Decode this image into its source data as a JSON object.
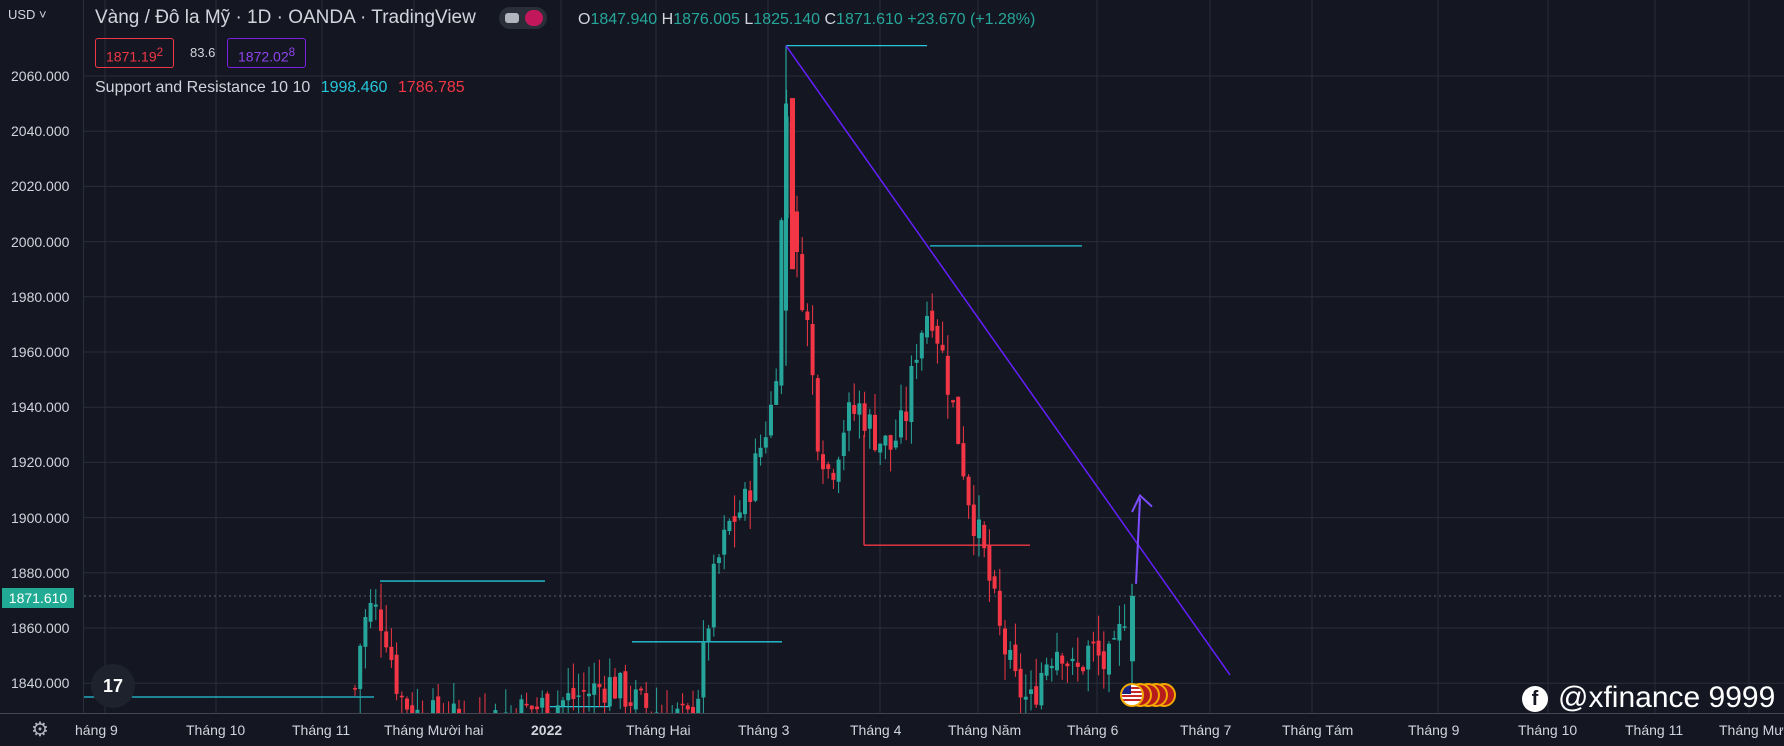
{
  "symbol_title": "Vàng / Đô la Mỹ · 1D · OANDA · TradingView",
  "ohlc": {
    "open_key": "O",
    "open": "1847.940",
    "high_key": "H",
    "high": "1876.005",
    "low_key": "L",
    "low": "1825.140",
    "close_key": "C",
    "close": "1871.610",
    "change": "+23.670 (+1.28%)"
  },
  "trade_boxes": {
    "sell_price": "1871.19",
    "sell_sup": "2",
    "spread": "83.6",
    "buy_price": "1872.02",
    "buy_sup": "8"
  },
  "indicator": {
    "name": "Support and Resistance 10 10",
    "value1": "1998.460",
    "value2": "1786.785"
  },
  "price_axis": {
    "currency": "USD ˅",
    "labels": [
      "2060.000",
      "2040.000",
      "2020.000",
      "2000.000",
      "1980.000",
      "1960.000",
      "1940.000",
      "1920.000",
      "1900.000",
      "1880.000",
      "1860.000",
      "1840.000"
    ],
    "current_price": "1871.610"
  },
  "time_axis": {
    "labels": [
      "háng 9",
      "Tháng 10",
      "Tháng 11",
      "Tháng Mười hai",
      "2022",
      "Tháng Hai",
      "Tháng 3",
      "Tháng 4",
      "Tháng Năm",
      "Tháng 6",
      "Tháng 7",
      "Tháng Tám",
      "Tháng 9",
      "Tháng 10",
      "Tháng 11",
      "Tháng Mư"
    ]
  },
  "logo_text": "17",
  "watermark": {
    "icon": "f",
    "text": "@xfinance 9999"
  },
  "colors": {
    "background": "#141722",
    "up": "#26a69a",
    "down": "#f23645",
    "support_line": "#26c6da",
    "trend_line": "#651fff"
  },
  "chart_data": {
    "type": "candlestick",
    "title": "Vàng / Đô la Mỹ · 1D · OANDA",
    "y_unit": "USD",
    "ylim": [
      1833,
      2075
    ],
    "grid": true,
    "last_candle": {
      "open": 1847.94,
      "high": 1876.005,
      "low": 1825.14,
      "close": 1871.61
    },
    "resistance_levels": [
      2071,
      1998.46,
      1877,
      1855,
      1890
    ],
    "support_level_indicator": 1786.785
  }
}
